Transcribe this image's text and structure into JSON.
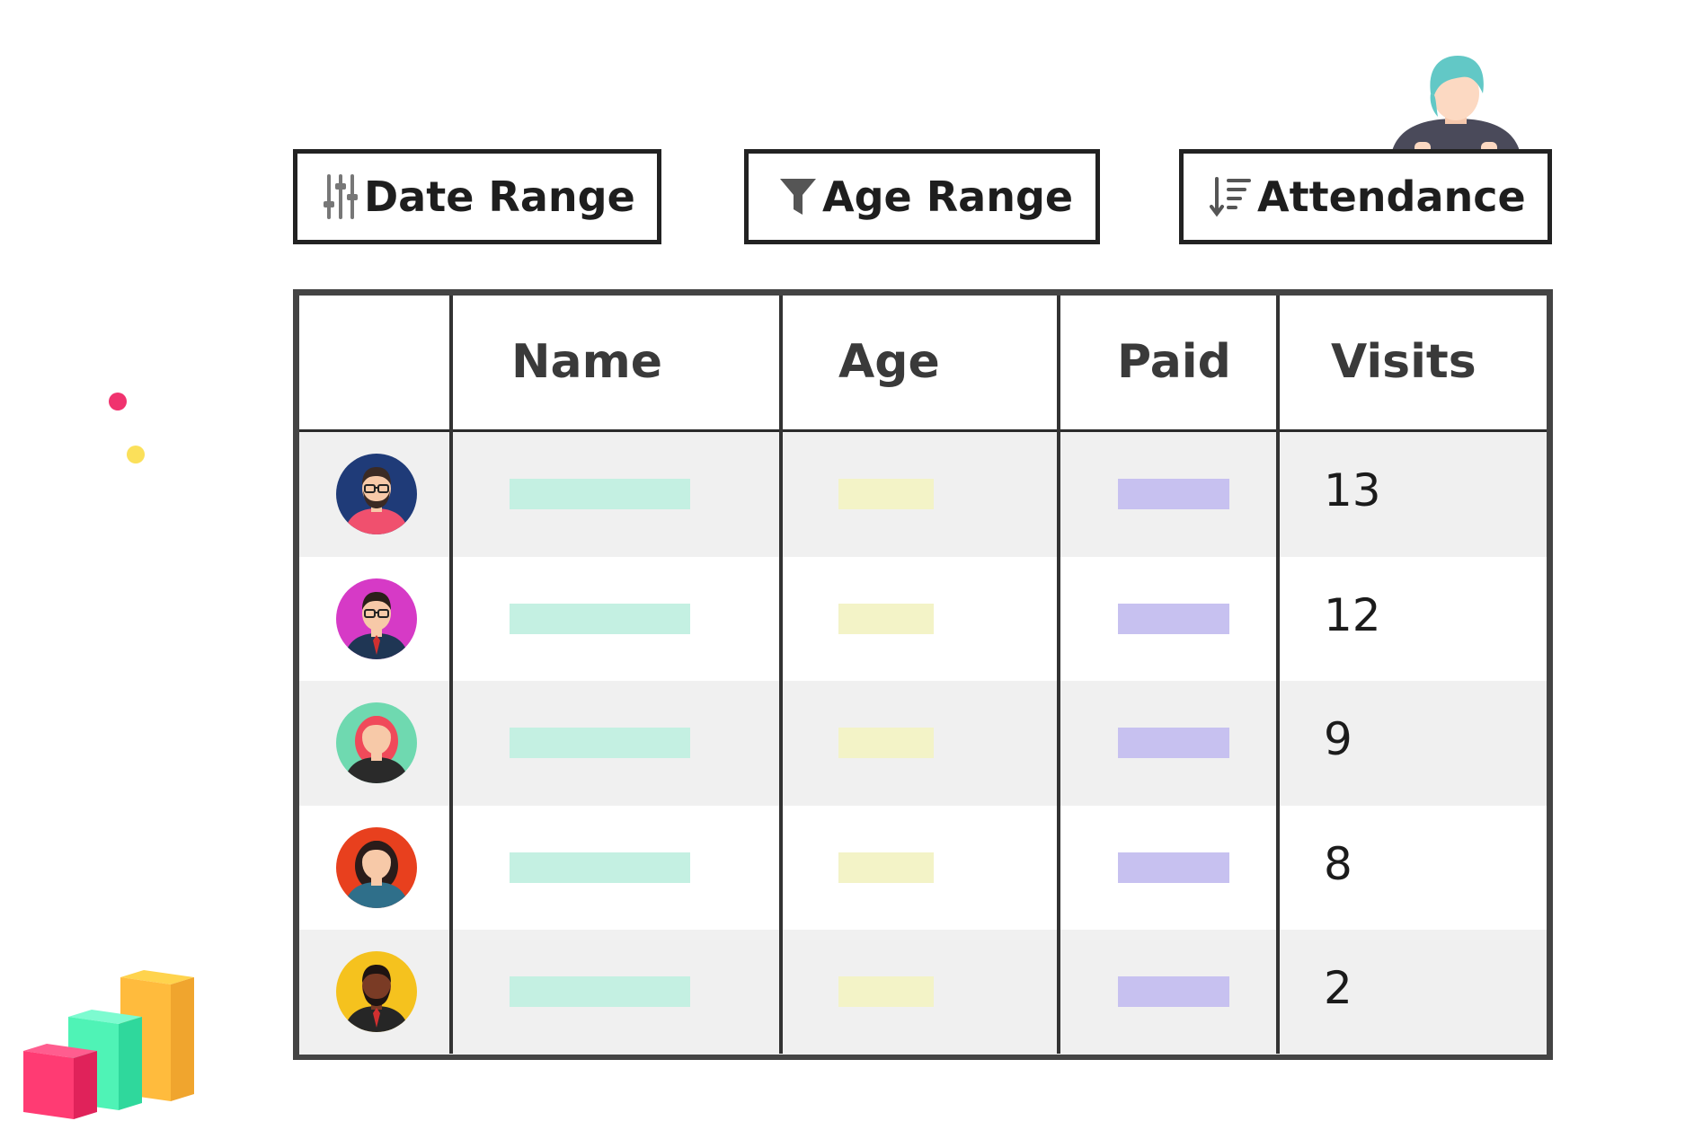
{
  "filters": [
    {
      "label": "Date Range",
      "icon": "sliders-icon"
    },
    {
      "label": "Age Range",
      "icon": "funnel-icon"
    },
    {
      "label": "Attendance",
      "icon": "sort-descending-icon"
    }
  ],
  "table": {
    "columns": [
      "",
      "Name",
      "Age",
      "Paid",
      "Visits"
    ],
    "rows": [
      {
        "avatar": "man-glasses-beard-avatar-icon",
        "visits": "13",
        "bg": "#f0f0f0"
      },
      {
        "avatar": "man-glasses-suit-avatar-icon",
        "visits": "12",
        "bg": "#ffffff"
      },
      {
        "avatar": "woman-red-hair-avatar-icon",
        "visits": "9",
        "bg": "#f0f0f0"
      },
      {
        "avatar": "woman-dark-hair-avatar-icon",
        "visits": "8",
        "bg": "#ffffff"
      },
      {
        "avatar": "man-beard-tie-avatar-icon",
        "visits": "2",
        "bg": "#f0f0f0"
      }
    ]
  },
  "colors": {
    "name_bar": "#c4f0e2",
    "age_bar": "#f3f3c7",
    "paid_bar": "#c7c1f0",
    "border": "#444444",
    "dot_pink": "#f0326e",
    "dot_yellow": "#fbe05a"
  }
}
